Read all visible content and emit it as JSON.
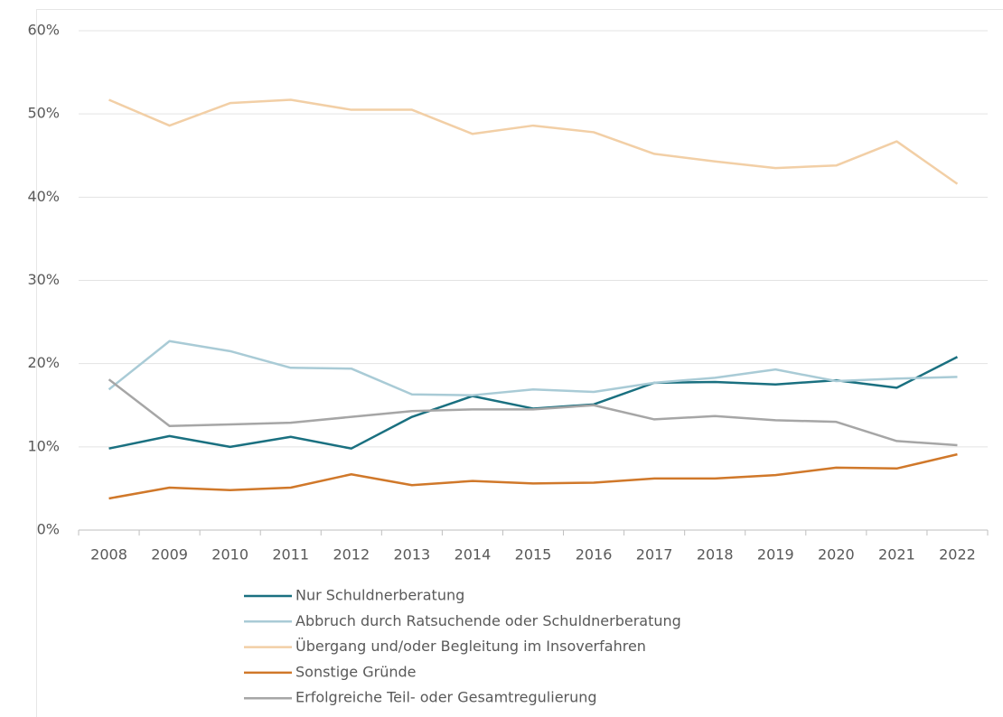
{
  "chart_data": {
    "type": "line",
    "categories": [
      "2008",
      "2009",
      "2010",
      "2011",
      "2012",
      "2013",
      "2014",
      "2015",
      "2016",
      "2017",
      "2018",
      "2019",
      "2020",
      "2021",
      "2022"
    ],
    "series": [
      {
        "name": "Nur Schuldnerberatung",
        "color": "#1a7080",
        "values": [
          9.8,
          11.3,
          10.0,
          11.2,
          9.8,
          13.6,
          16.1,
          14.6,
          15.1,
          17.7,
          17.8,
          17.5,
          18.0,
          17.1,
          20.8
        ]
      },
      {
        "name": "Abbruch durch Ratsuchende oder Schuldnerberatung",
        "color": "#a9cbd6",
        "values": [
          16.9,
          22.7,
          21.5,
          19.5,
          19.4,
          16.3,
          16.2,
          16.9,
          16.6,
          17.7,
          18.3,
          19.3,
          17.9,
          18.2,
          18.4
        ]
      },
      {
        "name": "Übergang und/oder Begleitung im Insoverfahren",
        "color": "#f2cfa6",
        "values": [
          51.7,
          48.6,
          51.3,
          51.7,
          50.5,
          50.5,
          47.6,
          48.6,
          47.8,
          45.2,
          44.3,
          43.5,
          43.8,
          46.7,
          41.6
        ]
      },
      {
        "name": "Sonstige Gründe",
        "color": "#d0782a",
        "values": [
          3.8,
          5.1,
          4.8,
          5.1,
          6.7,
          5.4,
          5.9,
          5.6,
          5.7,
          6.2,
          6.2,
          6.6,
          7.5,
          7.4,
          9.1
        ]
      },
      {
        "name": "Erfolgreiche Teil- oder Gesamtregulierung",
        "color": "#a6a6a6",
        "values": [
          18.1,
          12.5,
          12.7,
          12.9,
          13.6,
          14.3,
          14.5,
          14.5,
          15.0,
          13.3,
          13.7,
          13.2,
          13.0,
          10.7,
          10.2
        ]
      }
    ],
    "ylim": [
      0,
      60
    ],
    "yticks": [
      {
        "value": 0,
        "label": "0%"
      },
      {
        "value": 10,
        "label": "10%"
      },
      {
        "value": 20,
        "label": "20%"
      },
      {
        "value": 30,
        "label": "30%"
      },
      {
        "value": 40,
        "label": "40%"
      },
      {
        "value": 50,
        "label": "50%"
      },
      {
        "value": 60,
        "label": "60%"
      }
    ],
    "grid": true,
    "legend": "bottom"
  }
}
